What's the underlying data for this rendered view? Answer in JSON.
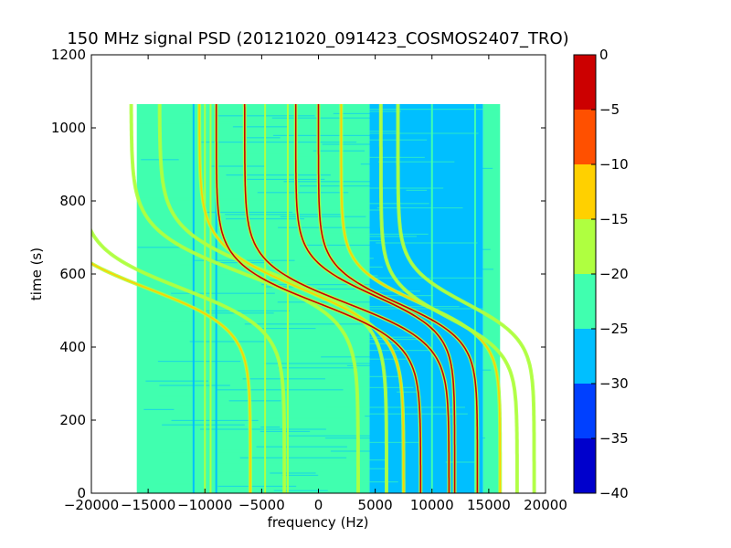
{
  "chart_data": {
    "type": "heatmap",
    "title": "150 MHz signal PSD (20121020_091423_COSMOS2407_TRO)",
    "xlabel": "frequency (Hz)",
    "ylabel": "time (s)",
    "xlim": [
      -20000,
      20000
    ],
    "ylim": [
      0,
      1200
    ],
    "xticks": [
      -20000,
      -15000,
      -10000,
      -5000,
      0,
      5000,
      10000,
      15000,
      20000
    ],
    "xtick_labels": [
      "−20000",
      "−15000",
      "−10000",
      "−5000",
      "0",
      "5000",
      "10000",
      "15000",
      "20000"
    ],
    "yticks": [
      0,
      200,
      400,
      600,
      800,
      1000,
      1200
    ],
    "ytick_labels": [
      "0",
      "200",
      "400",
      "600",
      "800",
      "1000",
      "1200"
    ],
    "data_extent": {
      "x": [
        -16000,
        16000
      ],
      "y": [
        0,
        1065
      ]
    },
    "colorbar": {
      "levels": [
        -40,
        -35,
        -30,
        -25,
        -20,
        -15,
        -10,
        -5,
        0
      ],
      "tick_labels": [
        "−40",
        "−35",
        "−30",
        "−25",
        "−20",
        "−15",
        "−10",
        "−5",
        "0"
      ],
      "colors": [
        "#0000cc",
        "#0040ff",
        "#00bfff",
        "#40ffaf",
        "#afff40",
        "#ffd000",
        "#ff5000",
        "#cc0000"
      ]
    },
    "background_regions": [
      {
        "x": [
          -16000,
          4500
        ],
        "level_color": "#40ffaf"
      },
      {
        "x": [
          4500,
          14500
        ],
        "level_color": "#00bfff"
      },
      {
        "x": [
          14500,
          16000
        ],
        "level_color": "#40ffaf"
      }
    ],
    "vertical_lines": [
      {
        "x": -11000,
        "color": "#00bfff"
      },
      {
        "x": -10000,
        "color": "#afff40"
      },
      {
        "x": -9500,
        "color": "#afff40"
      },
      {
        "x": -9000,
        "color": "#00bfff"
      },
      {
        "x": -4700,
        "color": "#afff40"
      },
      {
        "x": -2700,
        "color": "#afff40"
      },
      {
        "x": 10000,
        "color": "#40ffaf"
      },
      {
        "x": 13800,
        "color": "#40ffaf"
      }
    ],
    "doppler_traces": [
      {
        "center_x": -6500,
        "center_t": 600,
        "amplitude": 10000,
        "width": 120,
        "color": "#afff40"
      },
      {
        "center_x": -4000,
        "center_t": 600,
        "amplitude": 10000,
        "width": 120,
        "color": "#afff40"
      },
      {
        "center_x": -1500,
        "center_t": 560,
        "amplitude": 9000,
        "width": 120,
        "color": "#ffd000"
      },
      {
        "center_x": 0,
        "center_t": 520,
        "amplitude": 9000,
        "width": 110,
        "color": "#cc0000"
      },
      {
        "center_x": 2500,
        "center_t": 520,
        "amplitude": 9000,
        "width": 110,
        "color": "#cc0000"
      },
      {
        "center_x": 5000,
        "center_t": 540,
        "amplitude": 7000,
        "width": 100,
        "color": "#cc0000"
      },
      {
        "center_x": 7000,
        "center_t": 520,
        "amplitude": 7000,
        "width": 100,
        "color": "#cc0000"
      },
      {
        "center_x": 9000,
        "center_t": 520,
        "amplitude": 7000,
        "width": 100,
        "color": "#ffd000"
      },
      {
        "center_x": 11500,
        "center_t": 480,
        "amplitude": 6000,
        "width": 100,
        "color": "#afff40"
      },
      {
        "center_x": 13000,
        "center_t": 520,
        "amplitude": 6000,
        "width": 100,
        "color": "#afff40"
      },
      {
        "center_x": -15000,
        "center_t": 560,
        "amplitude": 9000,
        "width": 110,
        "color": "#ffd000"
      },
      {
        "center_x": -12000,
        "center_t": 560,
        "amplitude": 9000,
        "width": 110,
        "color": "#afff40"
      }
    ]
  }
}
